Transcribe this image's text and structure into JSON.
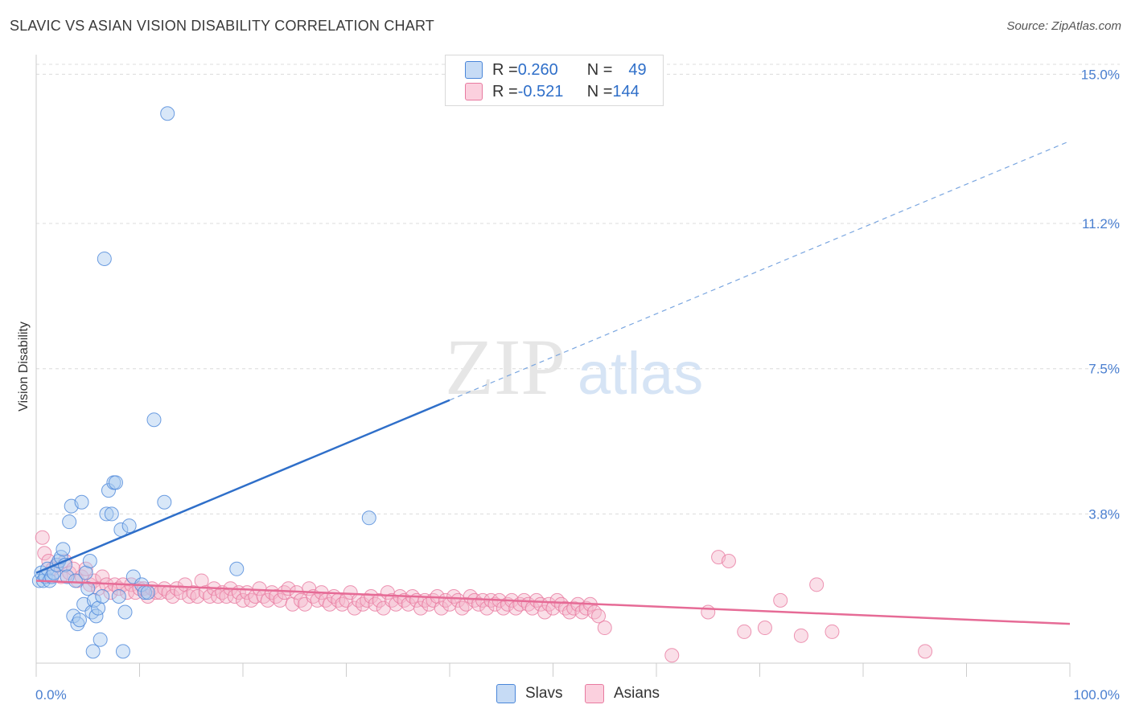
{
  "title": "SLAVIC VS ASIAN VISION DISABILITY CORRELATION CHART",
  "source": "Source: ZipAtlas.com",
  "watermark": {
    "zip": "ZIP",
    "atlas": "atlas"
  },
  "legend": {
    "rows": [
      {
        "r_label": "R = ",
        "r_value": "0.260",
        "n_label": "N = ",
        "n_value": "49",
        "color": "#a9c9f0"
      },
      {
        "r_label": "R = ",
        "r_value": "-0.521",
        "n_label": "N = ",
        "n_value": "144",
        "color": "#f5b8cc"
      }
    ]
  },
  "bottom_legend": {
    "slavs": "Slavs",
    "asians": "Asians"
  },
  "chart_data": {
    "type": "scatter",
    "title": "SLAVIC VS ASIAN VISION DISABILITY CORRELATION CHART",
    "xlabel": "",
    "ylabel": "Vision Disability",
    "xlim": [
      0,
      100
    ],
    "ylim": [
      0,
      15.5
    ],
    "x_tick_labels": [
      "0.0%",
      "100.0%"
    ],
    "y_ticks": [
      3.8,
      7.5,
      11.2,
      15.0
    ],
    "y_tick_labels": [
      "3.8%",
      "7.5%",
      "11.2%",
      "15.0%"
    ],
    "grid": true,
    "legend_position": "top-center",
    "series": [
      {
        "name": "Slavs",
        "color": "#4a86d9",
        "fill": "#a9c9f0",
        "trend": {
          "x0": 0,
          "y0": 2.3,
          "x1": 40,
          "y1": 6.7,
          "dash_to_x": 100,
          "dash_to_y": 13.3
        },
        "points": [
          [
            0.3,
            2.1
          ],
          [
            0.5,
            2.3
          ],
          [
            0.7,
            2.1
          ],
          [
            0.9,
            2.2
          ],
          [
            1.1,
            2.4
          ],
          [
            1.3,
            2.1
          ],
          [
            1.5,
            2.2
          ],
          [
            1.7,
            2.3
          ],
          [
            2.0,
            2.5
          ],
          [
            2.2,
            2.6
          ],
          [
            2.4,
            2.7
          ],
          [
            2.6,
            2.9
          ],
          [
            2.8,
            2.5
          ],
          [
            3.0,
            2.2
          ],
          [
            3.2,
            3.6
          ],
          [
            3.4,
            4.0
          ],
          [
            3.6,
            1.2
          ],
          [
            3.8,
            2.1
          ],
          [
            4.0,
            1.0
          ],
          [
            4.2,
            1.1
          ],
          [
            4.4,
            4.1
          ],
          [
            4.6,
            1.5
          ],
          [
            4.8,
            2.3
          ],
          [
            5.0,
            1.9
          ],
          [
            5.2,
            2.6
          ],
          [
            5.4,
            1.3
          ],
          [
            5.5,
            0.3
          ],
          [
            5.6,
            1.6
          ],
          [
            5.8,
            1.2
          ],
          [
            6.0,
            1.4
          ],
          [
            6.2,
            0.6
          ],
          [
            6.4,
            1.7
          ],
          [
            6.6,
            10.3
          ],
          [
            6.8,
            3.8
          ],
          [
            7.0,
            4.4
          ],
          [
            7.3,
            3.8
          ],
          [
            7.5,
            4.6
          ],
          [
            7.7,
            4.6
          ],
          [
            8.0,
            1.7
          ],
          [
            8.2,
            3.4
          ],
          [
            8.4,
            0.3
          ],
          [
            8.6,
            1.3
          ],
          [
            9.0,
            3.5
          ],
          [
            9.4,
            2.2
          ],
          [
            10.2,
            2.0
          ],
          [
            10.5,
            1.8
          ],
          [
            10.8,
            1.8
          ],
          [
            11.4,
            6.2
          ],
          [
            12.4,
            4.1
          ],
          [
            12.7,
            14.0
          ],
          [
            19.4,
            2.4
          ],
          [
            32.2,
            3.7
          ]
        ]
      },
      {
        "name": "Asians",
        "color": "#e87aa0",
        "fill": "#f5b8cc",
        "trend": {
          "x0": 0,
          "y0": 2.1,
          "x1": 100,
          "y1": 1.0
        },
        "points": [
          [
            0.6,
            3.2
          ],
          [
            0.8,
            2.8
          ],
          [
            1.2,
            2.6
          ],
          [
            1.6,
            2.4
          ],
          [
            2.0,
            2.5
          ],
          [
            2.4,
            2.2
          ],
          [
            2.8,
            2.6
          ],
          [
            3.2,
            2.3
          ],
          [
            3.6,
            2.4
          ],
          [
            4.0,
            2.1
          ],
          [
            4.4,
            2.2
          ],
          [
            4.8,
            2.4
          ],
          [
            5.2,
            2.0
          ],
          [
            5.6,
            2.1
          ],
          [
            6.0,
            1.9
          ],
          [
            6.4,
            2.2
          ],
          [
            6.8,
            2.0
          ],
          [
            7.2,
            1.8
          ],
          [
            7.6,
            2.0
          ],
          [
            8.0,
            1.9
          ],
          [
            8.4,
            2.0
          ],
          [
            8.8,
            1.8
          ],
          [
            9.2,
            2.0
          ],
          [
            9.6,
            1.8
          ],
          [
            10.0,
            1.9
          ],
          [
            10.4,
            1.9
          ],
          [
            10.8,
            1.7
          ],
          [
            11.2,
            1.9
          ],
          [
            11.6,
            1.8
          ],
          [
            12.0,
            1.8
          ],
          [
            12.4,
            1.9
          ],
          [
            12.8,
            1.8
          ],
          [
            13.2,
            1.7
          ],
          [
            13.6,
            1.9
          ],
          [
            14.0,
            1.8
          ],
          [
            14.4,
            2.0
          ],
          [
            14.8,
            1.7
          ],
          [
            15.2,
            1.8
          ],
          [
            15.6,
            1.7
          ],
          [
            16.0,
            2.1
          ],
          [
            16.4,
            1.8
          ],
          [
            16.8,
            1.7
          ],
          [
            17.2,
            1.9
          ],
          [
            17.6,
            1.7
          ],
          [
            18.0,
            1.8
          ],
          [
            18.4,
            1.7
          ],
          [
            18.8,
            1.9
          ],
          [
            19.2,
            1.7
          ],
          [
            19.6,
            1.8
          ],
          [
            20.0,
            1.6
          ],
          [
            20.4,
            1.8
          ],
          [
            20.8,
            1.6
          ],
          [
            21.2,
            1.7
          ],
          [
            21.6,
            1.9
          ],
          [
            22.0,
            1.7
          ],
          [
            22.4,
            1.6
          ],
          [
            22.8,
            1.8
          ],
          [
            23.2,
            1.7
          ],
          [
            23.6,
            1.6
          ],
          [
            24.0,
            1.8
          ],
          [
            24.4,
            1.9
          ],
          [
            24.8,
            1.5
          ],
          [
            25.2,
            1.8
          ],
          [
            25.6,
            1.6
          ],
          [
            26.0,
            1.5
          ],
          [
            26.4,
            1.9
          ],
          [
            26.8,
            1.7
          ],
          [
            27.2,
            1.6
          ],
          [
            27.6,
            1.8
          ],
          [
            28.0,
            1.6
          ],
          [
            28.4,
            1.5
          ],
          [
            28.8,
            1.7
          ],
          [
            29.2,
            1.6
          ],
          [
            29.6,
            1.5
          ],
          [
            30.0,
            1.6
          ],
          [
            30.4,
            1.8
          ],
          [
            30.8,
            1.4
          ],
          [
            31.2,
            1.6
          ],
          [
            31.6,
            1.5
          ],
          [
            32.0,
            1.6
          ],
          [
            32.4,
            1.7
          ],
          [
            32.8,
            1.5
          ],
          [
            33.2,
            1.6
          ],
          [
            33.6,
            1.4
          ],
          [
            34.0,
            1.8
          ],
          [
            34.4,
            1.6
          ],
          [
            34.8,
            1.5
          ],
          [
            35.2,
            1.7
          ],
          [
            35.6,
            1.6
          ],
          [
            36.0,
            1.5
          ],
          [
            36.4,
            1.7
          ],
          [
            36.8,
            1.6
          ],
          [
            37.2,
            1.4
          ],
          [
            37.6,
            1.6
          ],
          [
            38.0,
            1.5
          ],
          [
            38.4,
            1.6
          ],
          [
            38.8,
            1.7
          ],
          [
            39.2,
            1.4
          ],
          [
            39.6,
            1.6
          ],
          [
            40.0,
            1.5
          ],
          [
            40.4,
            1.7
          ],
          [
            40.8,
            1.6
          ],
          [
            41.2,
            1.4
          ],
          [
            41.6,
            1.5
          ],
          [
            42.0,
            1.7
          ],
          [
            42.4,
            1.6
          ],
          [
            42.8,
            1.5
          ],
          [
            43.2,
            1.6
          ],
          [
            43.6,
            1.4
          ],
          [
            44.0,
            1.6
          ],
          [
            44.4,
            1.5
          ],
          [
            44.8,
            1.6
          ],
          [
            45.2,
            1.4
          ],
          [
            45.6,
            1.5
          ],
          [
            46.0,
            1.6
          ],
          [
            46.4,
            1.4
          ],
          [
            46.8,
            1.5
          ],
          [
            47.2,
            1.6
          ],
          [
            47.6,
            1.5
          ],
          [
            48.0,
            1.4
          ],
          [
            48.4,
            1.6
          ],
          [
            48.8,
            1.5
          ],
          [
            49.2,
            1.3
          ],
          [
            49.6,
            1.5
          ],
          [
            50.0,
            1.4
          ],
          [
            50.4,
            1.6
          ],
          [
            50.8,
            1.5
          ],
          [
            51.2,
            1.4
          ],
          [
            51.6,
            1.3
          ],
          [
            52.0,
            1.4
          ],
          [
            52.4,
            1.5
          ],
          [
            52.8,
            1.3
          ],
          [
            53.2,
            1.4
          ],
          [
            53.6,
            1.5
          ],
          [
            54.0,
            1.3
          ],
          [
            54.4,
            1.2
          ],
          [
            55.0,
            0.9
          ],
          [
            61.5,
            0.2
          ],
          [
            66.0,
            2.7
          ],
          [
            67.0,
            2.6
          ],
          [
            68.5,
            0.8
          ],
          [
            70.5,
            0.9
          ],
          [
            74.0,
            0.7
          ],
          [
            77.0,
            0.8
          ],
          [
            86.0,
            0.3
          ],
          [
            65.0,
            1.3
          ],
          [
            72.0,
            1.6
          ],
          [
            75.5,
            2.0
          ]
        ]
      }
    ]
  }
}
